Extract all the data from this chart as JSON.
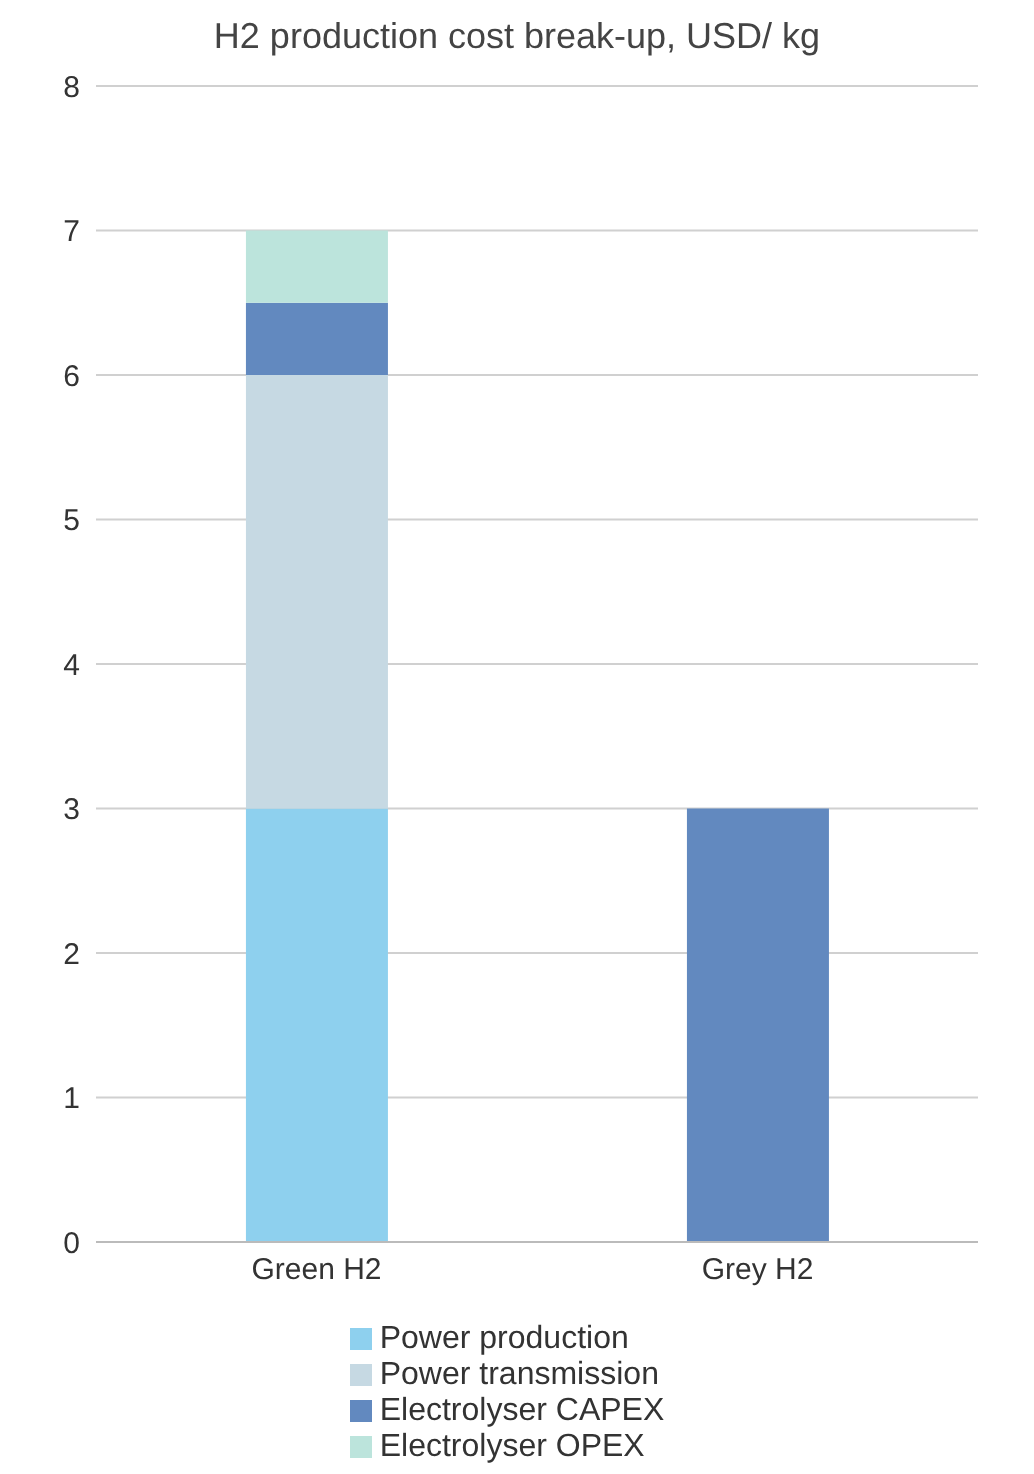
{
  "chart_data": {
    "type": "bar",
    "title": "H2 production cost break-up, USD/ kg",
    "categories": [
      "Green H2",
      "Grey H2"
    ],
    "stacked": true,
    "series": [
      {
        "name": "Power production",
        "color": "#8ed0ee",
        "values": [
          3,
          0
        ]
      },
      {
        "name": "Power transmission",
        "color": "#c6d9e3",
        "values": [
          3,
          0
        ]
      },
      {
        "name": "Electrolyser CAPEX",
        "color": "#6289bf",
        "values": [
          0.5,
          3
        ]
      },
      {
        "name": "Electrolyser OPEX",
        "color": "#bce4dc",
        "values": [
          0.5,
          0
        ]
      }
    ],
    "ylim": [
      0,
      8
    ],
    "yticks": [
      0,
      1,
      2,
      3,
      4,
      5,
      6,
      7,
      8
    ],
    "grid": "y",
    "legend": "bottom"
  }
}
